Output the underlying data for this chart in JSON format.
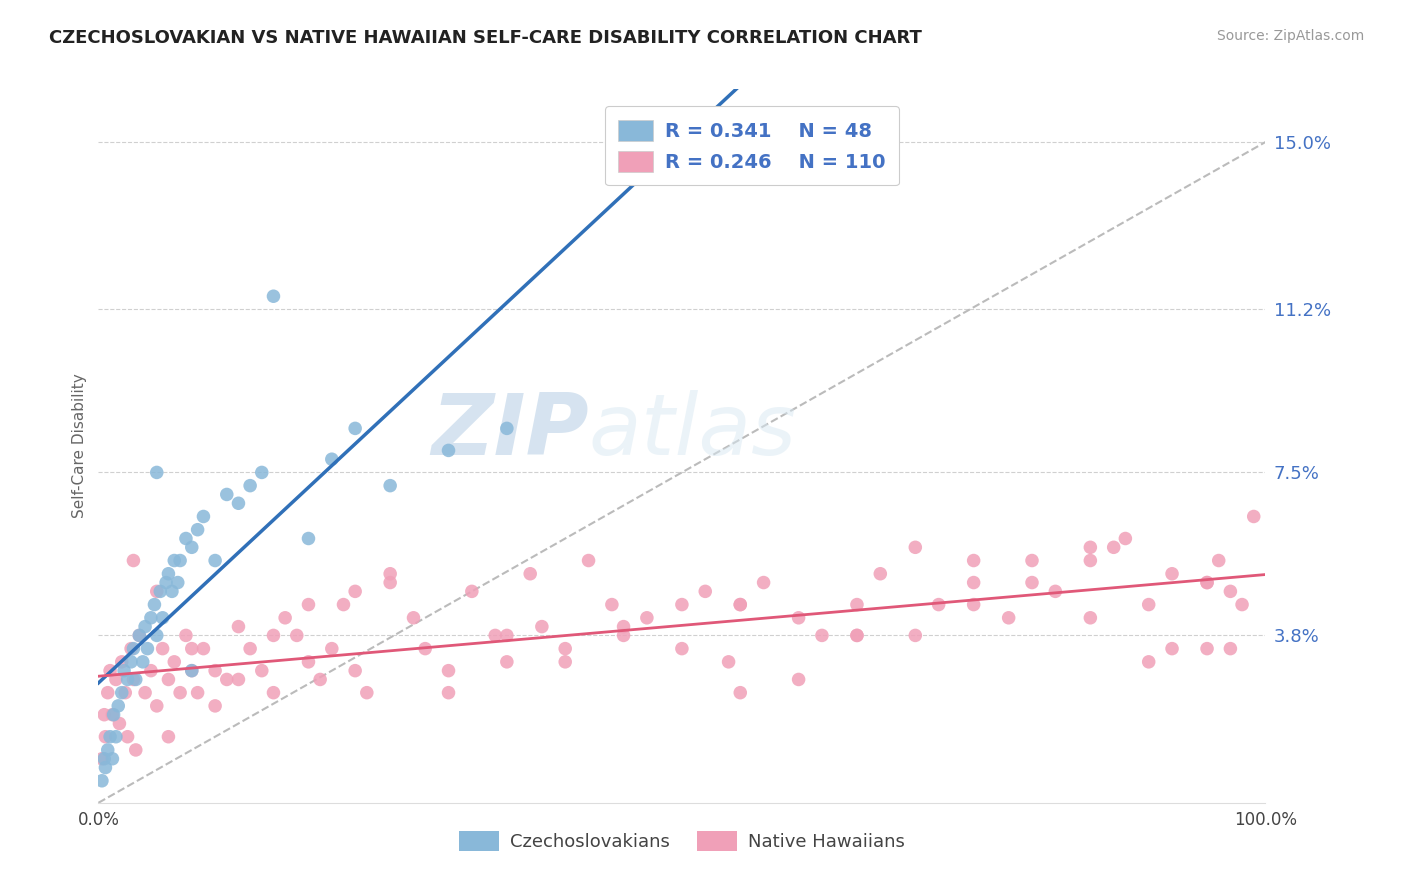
{
  "title": "CZECHOSLOVAKIAN VS NATIVE HAWAIIAN SELF-CARE DISABILITY CORRELATION CHART",
  "source": "Source: ZipAtlas.com",
  "ylabel": "Self-Care Disability",
  "xlim": [
    0,
    100
  ],
  "ylim_min": 0,
  "ylim_max": 16.2,
  "yticks": [
    3.8,
    7.5,
    11.2,
    15.0
  ],
  "ytick_labels": [
    "3.8%",
    "7.5%",
    "11.2%",
    "15.0%"
  ],
  "xtick_labels": [
    "0.0%",
    "100.0%"
  ],
  "legend_R1": "0.341",
  "legend_N1": "48",
  "legend_R2": "0.246",
  "legend_N2": "110",
  "blue_fill": "#89b8d9",
  "pink_fill": "#f0a0b8",
  "blue_line": "#3070b8",
  "pink_line": "#e05878",
  "ref_line_color": "#bbbbbb",
  "watermark_zip": "ZIP",
  "watermark_atlas": "atlas",
  "blue_x": [
    0.3,
    0.5,
    0.6,
    0.8,
    1.0,
    1.2,
    1.3,
    1.5,
    1.7,
    2.0,
    2.2,
    2.5,
    2.8,
    3.0,
    3.2,
    3.5,
    3.8,
    4.0,
    4.2,
    4.5,
    4.8,
    5.0,
    5.3,
    5.5,
    5.8,
    6.0,
    6.3,
    6.5,
    6.8,
    7.0,
    7.5,
    8.0,
    8.5,
    9.0,
    10.0,
    11.0,
    12.0,
    13.0,
    14.0,
    15.0,
    18.0,
    20.0,
    25.0,
    30.0,
    35.0,
    8.0,
    22.0,
    5.0
  ],
  "blue_y": [
    0.5,
    1.0,
    0.8,
    1.2,
    1.5,
    1.0,
    2.0,
    1.5,
    2.2,
    2.5,
    3.0,
    2.8,
    3.2,
    3.5,
    2.8,
    3.8,
    3.2,
    4.0,
    3.5,
    4.2,
    4.5,
    3.8,
    4.8,
    4.2,
    5.0,
    5.2,
    4.8,
    5.5,
    5.0,
    5.5,
    6.0,
    5.8,
    6.2,
    6.5,
    5.5,
    7.0,
    6.8,
    7.2,
    7.5,
    11.5,
    6.0,
    7.8,
    7.2,
    8.0,
    8.5,
    3.0,
    8.5,
    7.5
  ],
  "pink_x": [
    0.3,
    0.5,
    0.6,
    0.8,
    1.0,
    1.2,
    1.5,
    1.8,
    2.0,
    2.3,
    2.5,
    2.8,
    3.0,
    3.2,
    3.5,
    4.0,
    4.5,
    5.0,
    5.5,
    6.0,
    6.5,
    7.0,
    7.5,
    8.0,
    8.5,
    9.0,
    10.0,
    11.0,
    12.0,
    13.0,
    14.0,
    15.0,
    16.0,
    17.0,
    18.0,
    19.0,
    20.0,
    21.0,
    22.0,
    23.0,
    25.0,
    27.0,
    28.0,
    30.0,
    32.0,
    34.0,
    35.0,
    37.0,
    38.0,
    40.0,
    42.0,
    44.0,
    45.0,
    47.0,
    50.0,
    52.0,
    54.0,
    55.0,
    57.0,
    60.0,
    62.0,
    65.0,
    67.0,
    70.0,
    72.0,
    75.0,
    78.0,
    80.0,
    82.0,
    85.0,
    87.0,
    90.0,
    92.0,
    95.0,
    97.0,
    99.0,
    3.0,
    5.0,
    8.0,
    12.0,
    18.0,
    25.0,
    35.0,
    45.0,
    55.0,
    65.0,
    75.0,
    85.0,
    95.0,
    6.0,
    10.0,
    15.0,
    22.0,
    30.0,
    40.0,
    50.0,
    60.0,
    70.0,
    80.0,
    88.0,
    92.0,
    96.0,
    98.0,
    55.0,
    65.0,
    75.0,
    85.0,
    90.0,
    95.0,
    97.0
  ],
  "pink_y": [
    1.0,
    2.0,
    1.5,
    2.5,
    3.0,
    2.0,
    2.8,
    1.8,
    3.2,
    2.5,
    1.5,
    3.5,
    2.8,
    1.2,
    3.8,
    2.5,
    3.0,
    2.2,
    3.5,
    2.8,
    3.2,
    2.5,
    3.8,
    3.0,
    2.5,
    3.5,
    3.0,
    2.8,
    4.0,
    3.5,
    3.0,
    2.5,
    4.2,
    3.8,
    3.2,
    2.8,
    3.5,
    4.5,
    3.0,
    2.5,
    5.0,
    4.2,
    3.5,
    3.0,
    4.8,
    3.8,
    3.2,
    5.2,
    4.0,
    3.5,
    5.5,
    4.5,
    3.8,
    4.2,
    3.5,
    4.8,
    3.2,
    4.5,
    5.0,
    4.2,
    3.8,
    4.5,
    5.2,
    3.8,
    4.5,
    5.0,
    4.2,
    5.5,
    4.8,
    4.2,
    5.8,
    4.5,
    5.2,
    5.0,
    4.8,
    6.5,
    5.5,
    4.8,
    3.5,
    2.8,
    4.5,
    5.2,
    3.8,
    4.0,
    4.5,
    3.8,
    5.5,
    5.8,
    3.5,
    1.5,
    2.2,
    3.8,
    4.8,
    2.5,
    3.2,
    4.5,
    2.8,
    5.8,
    5.0,
    6.0,
    3.5,
    5.5,
    4.5,
    2.5,
    3.8,
    4.5,
    5.5,
    3.2,
    5.0,
    3.5
  ]
}
